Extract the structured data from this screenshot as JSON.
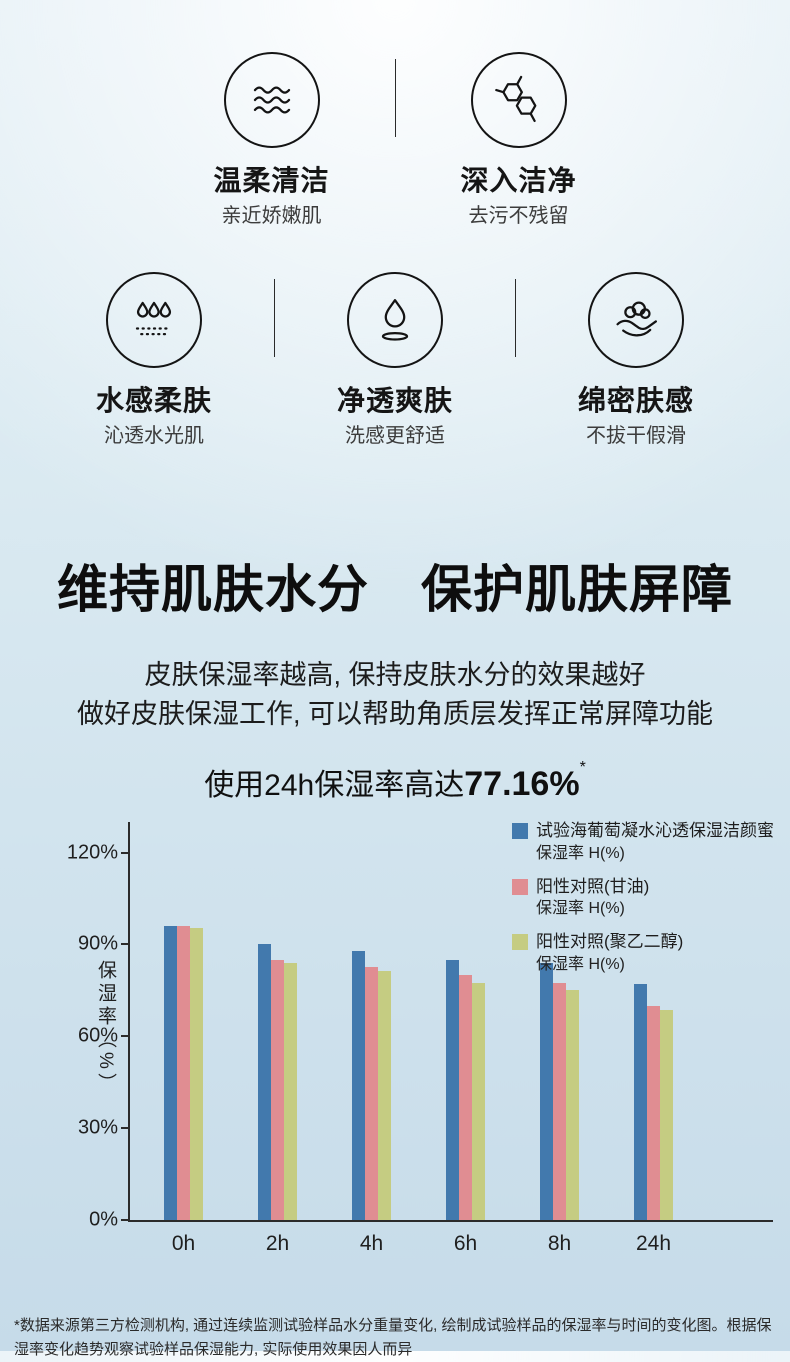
{
  "features": {
    "row1": [
      {
        "title": "温柔清洁",
        "subtitle": "亲近娇嫩肌",
        "icon": "waves-icon"
      },
      {
        "title": "深入洁净",
        "subtitle": "去污不残留",
        "icon": "molecule-icon"
      }
    ],
    "row2": [
      {
        "title": "水感柔肤",
        "subtitle": "沁透水光肌",
        "icon": "droplets-icon"
      },
      {
        "title": "净透爽肤",
        "subtitle": "洗感更舒适",
        "icon": "water-drop-icon"
      },
      {
        "title": "绵密肤感",
        "subtitle": "不拔干假滑",
        "icon": "hand-foam-icon"
      }
    ]
  },
  "headline": "维持肌肤水分　保护肌肤屏障",
  "description": {
    "line1": "皮肤保湿率越高, 保持皮肤水分的效果越好",
    "line2": "做好皮肤保湿工作, 可以帮助角质层发挥正常屏障功能"
  },
  "claim": {
    "prefix": "使用24h保湿率高达",
    "value": "77.16%",
    "asterisk": "*"
  },
  "chart_data": {
    "type": "bar",
    "title": "使用24h保湿率高达77.16%",
    "categories": [
      "0h",
      "2h",
      "4h",
      "6h",
      "8h",
      "24h"
    ],
    "series": [
      {
        "name": "试验海葡萄凝水沁透保湿洁颜蜜",
        "sub": "保湿率 H(%)",
        "color": "#4279ad",
        "values": [
          96,
          90,
          88,
          85,
          84,
          77.16
        ]
      },
      {
        "name": "阳性对照(甘油)",
        "sub": "保湿率 H(%)",
        "color": "#e08d92",
        "values": [
          96,
          85,
          82.5,
          80,
          77.5,
          70
        ]
      },
      {
        "name": "阳性对照(聚乙二醇)",
        "sub": "保湿率 H(%)",
        "color": "#c5cc82",
        "values": [
          95.5,
          84,
          81.5,
          77.5,
          75,
          68.5
        ]
      }
    ],
    "xlabel": "",
    "ylabel": "保湿率（%）",
    "yticks": [
      0,
      30,
      60,
      90,
      120
    ],
    "ytick_labels": [
      "0%",
      "30%",
      "60%",
      "90%",
      "120%"
    ],
    "ylim": [
      0,
      130
    ],
    "grid": false,
    "legend_position": "top-right"
  },
  "footnote": "*数据来源第三方检测机构, 通过连续监测试验样品水分重量变化, 绘制成试验样品的保湿率与时间的变化图。根据保湿率变化趋势观察试验样品保湿能力, 实际使用效果因人而异"
}
